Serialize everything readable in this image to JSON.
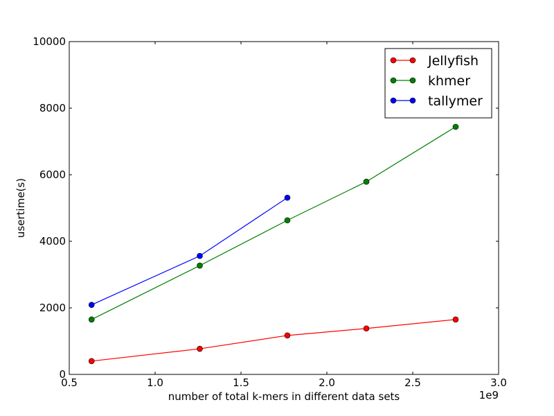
{
  "chart_data": {
    "type": "line",
    "title": "",
    "xlabel": "number of total k-mers in different data sets",
    "ylabel": "usertime(s)",
    "x_offset_label": "1e9",
    "xlim": [
      0.5,
      3.0
    ],
    "ylim": [
      0,
      10000
    ],
    "x_ticks": [
      0.5,
      1.0,
      1.5,
      2.0,
      2.5,
      3.0
    ],
    "x_tick_labels": [
      "0.5",
      "1.0",
      "1.5",
      "2.0",
      "2.5",
      "3.0"
    ],
    "y_ticks": [
      0,
      2000,
      4000,
      6000,
      8000,
      10000
    ],
    "y_tick_labels": [
      "0",
      "2000",
      "4000",
      "6000",
      "8000",
      "10000"
    ],
    "grid": false,
    "legend_position": "top-right",
    "series": [
      {
        "name": "Jellyfish",
        "color": "#ff0000",
        "x": [
          0.63,
          1.26,
          1.77,
          2.23,
          2.75
        ],
        "y": [
          400,
          770,
          1170,
          1380,
          1650
        ]
      },
      {
        "name": "khmer",
        "color": "#008000",
        "x": [
          0.63,
          1.26,
          1.77,
          2.23,
          2.75
        ],
        "y": [
          1650,
          3270,
          4630,
          5790,
          7440
        ]
      },
      {
        "name": "tallymer",
        "color": "#0000ff",
        "x": [
          0.63,
          1.26,
          1.77
        ],
        "y": [
          2090,
          3560,
          5310
        ]
      }
    ]
  }
}
